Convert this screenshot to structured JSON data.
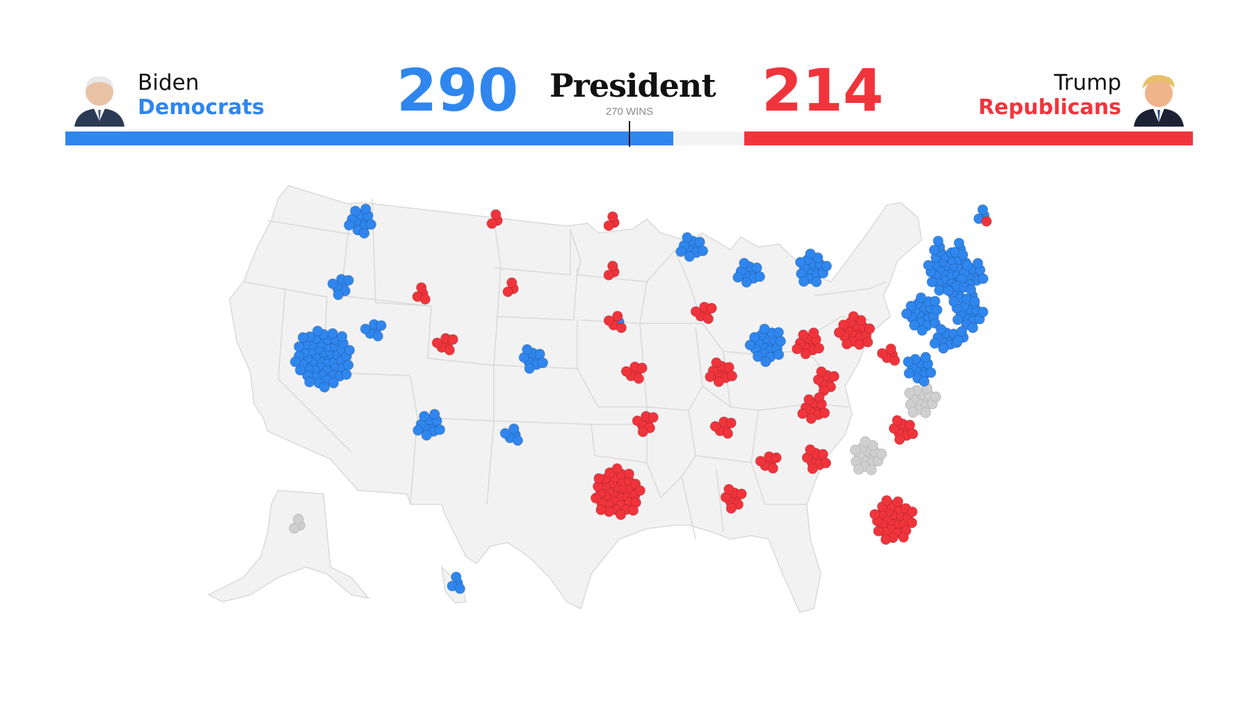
{
  "race": {
    "title": "President",
    "threshold_label": "270 WINS",
    "threshold_value": 270,
    "total_electoral_votes": 538
  },
  "candidates": [
    {
      "name": "Biden",
      "party": "Democrats",
      "electoral_votes": 290,
      "votes_display": "290",
      "color": "#2f86ee",
      "side": "left",
      "portrait_icon": "candidate-portrait-icon"
    },
    {
      "name": "Trump",
      "party": "Republicans",
      "electoral_votes": 214,
      "votes_display": "214",
      "color": "#f1343c",
      "side": "right",
      "portrait_icon": "candidate-portrait-icon"
    }
  ],
  "colors": {
    "dem": "#2f86ee",
    "rep": "#f1343c",
    "pending": "#cfcfcf",
    "state_fill": "#f2f2f2",
    "state_border": "#d9d9d9",
    "bar_empty": "#f3f3f3"
  },
  "map": {
    "states": [
      {
        "code": "WA",
        "winner": "dem",
        "ev": 12
      },
      {
        "code": "OR",
        "winner": "dem",
        "ev": 7
      },
      {
        "code": "CA",
        "winner": "dem",
        "ev": 55
      },
      {
        "code": "NV",
        "winner": "dem",
        "ev": 6
      },
      {
        "code": "ID",
        "winner": "rep",
        "ev": 4
      },
      {
        "code": "MT",
        "winner": "rep",
        "ev": 3
      },
      {
        "code": "WY",
        "winner": "rep",
        "ev": 3
      },
      {
        "code": "UT",
        "winner": "rep",
        "ev": 6
      },
      {
        "code": "AZ",
        "winner": "dem",
        "ev": 11
      },
      {
        "code": "CO",
        "winner": "dem",
        "ev": 9
      },
      {
        "code": "NM",
        "winner": "dem",
        "ev": 5
      },
      {
        "code": "ND",
        "winner": "rep",
        "ev": 3
      },
      {
        "code": "SD",
        "winner": "rep",
        "ev": 3
      },
      {
        "code": "NE",
        "winner": "rep",
        "ev": 5,
        "split": {
          "dem": 1,
          "rep": 4
        }
      },
      {
        "code": "KS",
        "winner": "rep",
        "ev": 6
      },
      {
        "code": "OK",
        "winner": "rep",
        "ev": 7
      },
      {
        "code": "TX",
        "winner": "rep",
        "ev": 38
      },
      {
        "code": "MN",
        "winner": "dem",
        "ev": 10
      },
      {
        "code": "IA",
        "winner": "rep",
        "ev": 6
      },
      {
        "code": "MO",
        "winner": "rep",
        "ev": 10
      },
      {
        "code": "AR",
        "winner": "rep",
        "ev": 6
      },
      {
        "code": "LA",
        "winner": "rep",
        "ev": 8
      },
      {
        "code": "WI",
        "winner": "dem",
        "ev": 10
      },
      {
        "code": "IL",
        "winner": "dem",
        "ev": 20
      },
      {
        "code": "MI",
        "winner": "dem",
        "ev": 16
      },
      {
        "code": "IN",
        "winner": "rep",
        "ev": 11
      },
      {
        "code": "OH",
        "winner": "rep",
        "ev": 18
      },
      {
        "code": "KY",
        "winner": "rep",
        "ev": 8
      },
      {
        "code": "TN",
        "winner": "rep",
        "ev": 11
      },
      {
        "code": "MS",
        "winner": "rep",
        "ev": 6
      },
      {
        "code": "AL",
        "winner": "rep",
        "ev": 9
      },
      {
        "code": "GA",
        "winner": "pending",
        "ev": 16
      },
      {
        "code": "FL",
        "winner": "rep",
        "ev": 29
      },
      {
        "code": "SC",
        "winner": "rep",
        "ev": 9
      },
      {
        "code": "NC",
        "winner": "pending",
        "ev": 15
      },
      {
        "code": "VA",
        "winner": "dem",
        "ev": 13
      },
      {
        "code": "WV",
        "winner": "rep",
        "ev": 5
      },
      {
        "code": "PA",
        "winner": "dem",
        "ev": 20
      },
      {
        "code": "NY",
        "winner": "dem",
        "ev": 29
      },
      {
        "code": "NJ",
        "winner": "dem",
        "ev": 14
      },
      {
        "code": "MD",
        "winner": "dem",
        "ev": 10
      },
      {
        "code": "DE",
        "winner": "dem",
        "ev": 3
      },
      {
        "code": "VT",
        "winner": "dem",
        "ev": 3
      },
      {
        "code": "NH",
        "winner": "dem",
        "ev": 4
      },
      {
        "code": "MA",
        "winner": "dem",
        "ev": 11
      },
      {
        "code": "CT",
        "winner": "dem",
        "ev": 7
      },
      {
        "code": "RI",
        "winner": "dem",
        "ev": 4
      },
      {
        "code": "ME",
        "winner": "dem",
        "ev": 4,
        "split": {
          "dem": 3,
          "rep": 1
        }
      },
      {
        "code": "AK",
        "winner": "pending",
        "ev": 3
      },
      {
        "code": "HI",
        "winner": "dem",
        "ev": 4
      }
    ]
  }
}
